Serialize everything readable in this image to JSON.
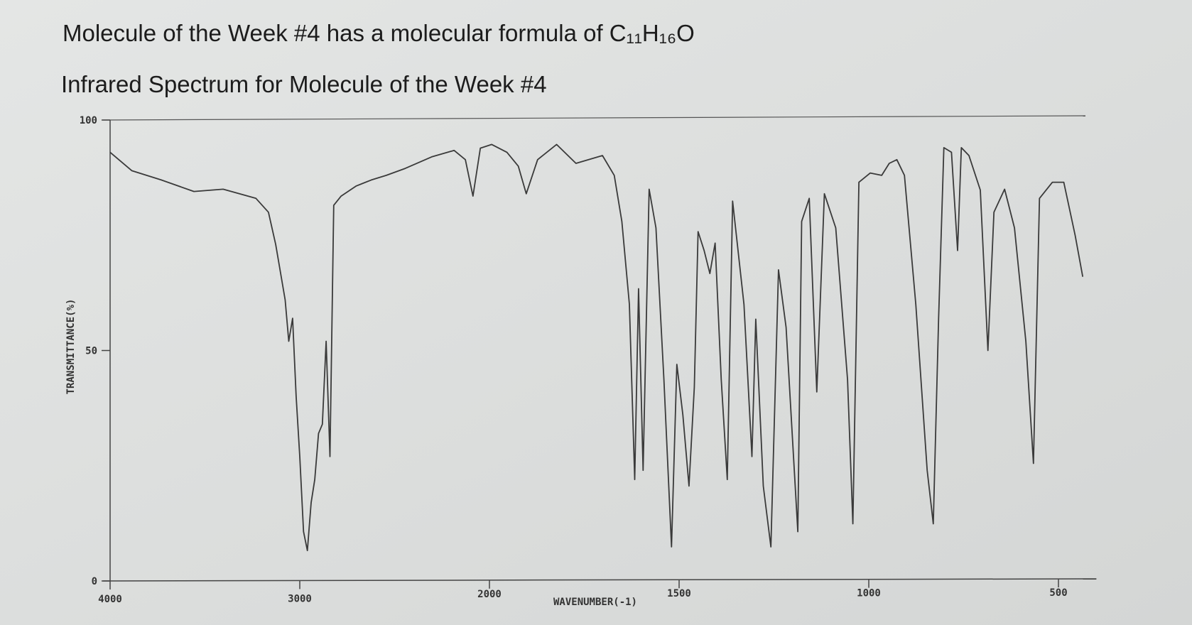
{
  "chart_data": {
    "type": "line",
    "title": "Molecule of the Week #4 has a molecular formula of C₁₁H₁₆O",
    "subtitle": "Infrared Spectrum for Molecule of the Week #4",
    "x_label": "WAVENUMBER(-1)",
    "y_label": "TRANSMITTANCE(%)",
    "color": "#3a3a3a",
    "xlim": [
      4000,
      400
    ],
    "xticks": [
      4000,
      3000,
      2000,
      1500,
      1000,
      500
    ],
    "ylim": [
      0,
      100
    ],
    "yticks": [
      0,
      50,
      100
    ],
    "x": [
      4000,
      3885,
      3730,
      3558,
      3404,
      3231,
      3165,
      3127,
      3104,
      3077,
      3058,
      3038,
      3019,
      3000,
      2980,
      2960,
      2940,
      2921,
      2901,
      2881,
      2861,
      2841,
      2821,
      2782,
      2702,
      2623,
      2544,
      2444,
      2305,
      2186,
      2127,
      2087,
      2048,
      1994,
      1954,
      1924,
      1903,
      1873,
      1823,
      1772,
      1702,
      1671,
      1651,
      1631,
      1617,
      1607,
      1595,
      1579,
      1561,
      1540,
      1520,
      1506,
      1490,
      1474,
      1460,
      1450,
      1434,
      1419,
      1405,
      1389,
      1373,
      1359,
      1329,
      1308,
      1298,
      1278,
      1258,
      1238,
      1218,
      1187,
      1177,
      1157,
      1137,
      1117,
      1087,
      1056,
      1042,
      1026,
      996,
      966,
      946,
      926,
      906,
      876,
      846,
      830,
      816,
      802,
      782,
      766,
      756,
      736,
      706,
      686,
      670,
      642,
      616,
      586,
      566,
      550,
      516,
      486,
      456,
      436
    ],
    "values": [
      93,
      89,
      87,
      84.5,
      85,
      83,
      80,
      73,
      67.5,
      61,
      52,
      57,
      40,
      27,
      10.7,
      6.6,
      17,
      22,
      32,
      34,
      52,
      27,
      81.5,
      83.5,
      85.7,
      87,
      88,
      89.5,
      92,
      93.4,
      91.4,
      83.5,
      93.9,
      94.7,
      93,
      90,
      84,
      91.4,
      94.7,
      90.6,
      92.3,
      88,
      78,
      60,
      22,
      63.4,
      24,
      85,
      76.6,
      43.7,
      7.4,
      47,
      36,
      20.6,
      42,
      75.8,
      71.7,
      66.7,
      73.3,
      43.7,
      22,
      82.4,
      60,
      27,
      56.8,
      20.6,
      7.4,
      67.5,
      55,
      10.7,
      78,
      83,
      41,
      84,
      76.6,
      43.7,
      12.4,
      86.5,
      88.5,
      88,
      90.6,
      91.4,
      88,
      60,
      24,
      12.4,
      57,
      94,
      93,
      71.7,
      94,
      92.3,
      84.8,
      50,
      80,
      85,
      76.6,
      52,
      25.5,
      83,
      86.5,
      86.5,
      75,
      66
    ]
  }
}
